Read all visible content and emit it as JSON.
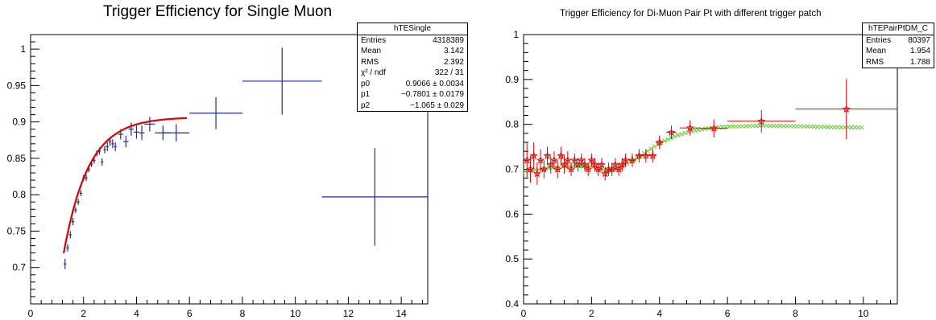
{
  "chart_data": [
    {
      "type": "scatter",
      "title": "Trigger Efficiency for Single Muon",
      "xlabel": "",
      "ylabel": "",
      "xlim": [
        0,
        15
      ],
      "ylim": [
        0.65,
        1.02
      ],
      "xticks": [
        0,
        2,
        4,
        6,
        8,
        10,
        12,
        14
      ],
      "xtick_labels": [
        "0",
        "2",
        "4",
        "6",
        "8",
        "10",
        "12",
        "14"
      ],
      "yticks": [
        0.7,
        0.75,
        0.8,
        0.85,
        0.9,
        0.95,
        1
      ],
      "ytick_labels": [
        "0.7",
        "0.75",
        "0.8",
        "0.85",
        "0.9",
        "0.95",
        "1"
      ],
      "grid": false,
      "marker_color": "#1f2f8f",
      "fit_color": "#e00000",
      "series": [
        {
          "points": [
            {
              "x": 1.3,
              "y": 0.705,
              "xerr": 0.05,
              "yerr": 0.007
            },
            {
              "x": 1.4,
              "y": 0.727,
              "xerr": 0.05,
              "yerr": 0.005
            },
            {
              "x": 1.5,
              "y": 0.745,
              "xerr": 0.05,
              "yerr": 0.005
            },
            {
              "x": 1.6,
              "y": 0.763,
              "xerr": 0.05,
              "yerr": 0.005
            },
            {
              "x": 1.7,
              "y": 0.779,
              "xerr": 0.05,
              "yerr": 0.004
            },
            {
              "x": 1.8,
              "y": 0.79,
              "xerr": 0.05,
              "yerr": 0.004
            },
            {
              "x": 1.9,
              "y": 0.802,
              "xerr": 0.05,
              "yerr": 0.004
            },
            {
              "x": 2.0,
              "y": 0.823,
              "xerr": 0.05,
              "yerr": 0.004
            },
            {
              "x": 2.1,
              "y": 0.823,
              "xerr": 0.05,
              "yerr": 0.004
            },
            {
              "x": 2.2,
              "y": 0.835,
              "xerr": 0.05,
              "yerr": 0.004
            },
            {
              "x": 2.3,
              "y": 0.842,
              "xerr": 0.05,
              "yerr": 0.004
            },
            {
              "x": 2.4,
              "y": 0.847,
              "xerr": 0.05,
              "yerr": 0.004
            },
            {
              "x": 2.5,
              "y": 0.857,
              "xerr": 0.05,
              "yerr": 0.004
            },
            {
              "x": 2.6,
              "y": 0.86,
              "xerr": 0.05,
              "yerr": 0.005
            },
            {
              "x": 2.7,
              "y": 0.845,
              "xerr": 0.05,
              "yerr": 0.005
            },
            {
              "x": 2.8,
              "y": 0.862,
              "xerr": 0.05,
              "yerr": 0.005
            },
            {
              "x": 2.9,
              "y": 0.866,
              "xerr": 0.05,
              "yerr": 0.006
            },
            {
              "x": 3.0,
              "y": 0.873,
              "xerr": 0.05,
              "yerr": 0.006
            },
            {
              "x": 3.1,
              "y": 0.87,
              "xerr": 0.05,
              "yerr": 0.006
            },
            {
              "x": 3.2,
              "y": 0.866,
              "xerr": 0.05,
              "yerr": 0.006
            },
            {
              "x": 3.4,
              "y": 0.883,
              "xerr": 0.1,
              "yerr": 0.007
            },
            {
              "x": 3.6,
              "y": 0.873,
              "xerr": 0.1,
              "yerr": 0.008
            },
            {
              "x": 3.8,
              "y": 0.89,
              "xerr": 0.1,
              "yerr": 0.009
            },
            {
              "x": 4.0,
              "y": 0.886,
              "xerr": 0.1,
              "yerr": 0.009
            },
            {
              "x": 4.2,
              "y": 0.885,
              "xerr": 0.1,
              "yerr": 0.01
            },
            {
              "x": 4.5,
              "y": 0.897,
              "xerr": 0.2,
              "yerr": 0.01
            },
            {
              "x": 5.0,
              "y": 0.885,
              "xerr": 0.3,
              "yerr": 0.01
            },
            {
              "x": 5.5,
              "y": 0.885,
              "xerr": 0.5,
              "yerr": 0.012
            },
            {
              "x": 7.0,
              "y": 0.912,
              "xerr": 1.0,
              "yerr": 0.022
            },
            {
              "x": 9.5,
              "y": 0.956,
              "xerr": 1.5,
              "yerr": 0.046
            },
            {
              "x": 13.0,
              "y": 0.797,
              "xerr": 2.0,
              "yerr": 0.067
            }
          ]
        }
      ],
      "fit": {
        "x_range": [
          1.25,
          5.9
        ],
        "p0": 0.9066,
        "p1": -0.7801,
        "p2": -1.065
      },
      "stats": {
        "title": "hTESingle",
        "rows": [
          {
            "label": "Entries",
            "value": "4318389"
          },
          {
            "label": "Mean",
            "value": "3.142"
          },
          {
            "label": "RMS",
            "value": "2.392"
          },
          {
            "label": "χ² / ndf",
            "value": "322 / 31"
          },
          {
            "label": "p0",
            "value": "0.9066 ± 0.0034"
          },
          {
            "label": "p1",
            "value": "−0.7801 ± 0.0179"
          },
          {
            "label": "p2",
            "value": "−1.065 ± 0.029"
          }
        ]
      }
    },
    {
      "type": "scatter",
      "title": "Trigger Efficiency for Di-Muon Pair Pt with different trigger patch",
      "xlabel": "",
      "ylabel": "",
      "xlim": [
        0,
        11
      ],
      "ylim": [
        0.4,
        1
      ],
      "xticks": [
        0,
        2,
        4,
        6,
        8,
        10
      ],
      "xtick_labels": [
        "0",
        "2",
        "4",
        "6",
        "8",
        "10"
      ],
      "yticks": [
        0.4,
        0.5,
        0.6,
        0.7,
        0.8,
        0.9,
        1
      ],
      "ytick_labels": [
        "0.4",
        "0.5",
        "0.6",
        "0.7",
        "0.8",
        "0.9",
        "1"
      ],
      "grid": false,
      "series": [
        {
          "color": "#e00000",
          "marker": "star",
          "points": [
            {
              "x": 0.1,
              "y": 0.72,
              "xerr": 0.05,
              "yerr": 0.04
            },
            {
              "x": 0.2,
              "y": 0.7,
              "xerr": 0.05,
              "yerr": 0.03
            },
            {
              "x": 0.3,
              "y": 0.73,
              "xerr": 0.05,
              "yerr": 0.03
            },
            {
              "x": 0.4,
              "y": 0.69,
              "xerr": 0.05,
              "yerr": 0.025
            },
            {
              "x": 0.5,
              "y": 0.72,
              "xerr": 0.05,
              "yerr": 0.025
            },
            {
              "x": 0.6,
              "y": 0.7,
              "xerr": 0.05,
              "yerr": 0.02
            },
            {
              "x": 0.7,
              "y": 0.73,
              "xerr": 0.05,
              "yerr": 0.02
            },
            {
              "x": 0.8,
              "y": 0.71,
              "xerr": 0.05,
              "yerr": 0.02
            },
            {
              "x": 0.9,
              "y": 0.72,
              "xerr": 0.05,
              "yerr": 0.02
            },
            {
              "x": 1.0,
              "y": 0.7,
              "xerr": 0.05,
              "yerr": 0.02
            },
            {
              "x": 1.1,
              "y": 0.73,
              "xerr": 0.05,
              "yerr": 0.02
            },
            {
              "x": 1.2,
              "y": 0.71,
              "xerr": 0.05,
              "yerr": 0.02
            },
            {
              "x": 1.3,
              "y": 0.72,
              "xerr": 0.05,
              "yerr": 0.02
            },
            {
              "x": 1.4,
              "y": 0.7,
              "xerr": 0.05,
              "yerr": 0.015
            },
            {
              "x": 1.5,
              "y": 0.72,
              "xerr": 0.05,
              "yerr": 0.015
            },
            {
              "x": 1.6,
              "y": 0.71,
              "xerr": 0.05,
              "yerr": 0.015
            },
            {
              "x": 1.7,
              "y": 0.72,
              "xerr": 0.05,
              "yerr": 0.015
            },
            {
              "x": 1.8,
              "y": 0.71,
              "xerr": 0.05,
              "yerr": 0.015
            },
            {
              "x": 1.9,
              "y": 0.7,
              "xerr": 0.05,
              "yerr": 0.015
            },
            {
              "x": 2.0,
              "y": 0.72,
              "xerr": 0.05,
              "yerr": 0.015
            },
            {
              "x": 2.1,
              "y": 0.71,
              "xerr": 0.05,
              "yerr": 0.015
            },
            {
              "x": 2.2,
              "y": 0.7,
              "xerr": 0.05,
              "yerr": 0.015
            },
            {
              "x": 2.3,
              "y": 0.71,
              "xerr": 0.05,
              "yerr": 0.015
            },
            {
              "x": 2.4,
              "y": 0.69,
              "xerr": 0.05,
              "yerr": 0.015
            },
            {
              "x": 2.5,
              "y": 0.7,
              "xerr": 0.05,
              "yerr": 0.015
            },
            {
              "x": 2.6,
              "y": 0.7,
              "xerr": 0.05,
              "yerr": 0.015
            },
            {
              "x": 2.7,
              "y": 0.71,
              "xerr": 0.05,
              "yerr": 0.015
            },
            {
              "x": 2.8,
              "y": 0.7,
              "xerr": 0.05,
              "yerr": 0.015
            },
            {
              "x": 2.9,
              "y": 0.71,
              "xerr": 0.05,
              "yerr": 0.015
            },
            {
              "x": 3.0,
              "y": 0.72,
              "xerr": 0.05,
              "yerr": 0.015
            },
            {
              "x": 3.2,
              "y": 0.72,
              "xerr": 0.1,
              "yerr": 0.015
            },
            {
              "x": 3.4,
              "y": 0.73,
              "xerr": 0.1,
              "yerr": 0.015
            },
            {
              "x": 3.6,
              "y": 0.73,
              "xerr": 0.1,
              "yerr": 0.015
            },
            {
              "x": 3.8,
              "y": 0.73,
              "xerr": 0.1,
              "yerr": 0.015
            },
            {
              "x": 4.0,
              "y": 0.76,
              "xerr": 0.1,
              "yerr": 0.015
            },
            {
              "x": 4.35,
              "y": 0.782,
              "xerr": 0.15,
              "yerr": 0.015
            },
            {
              "x": 4.9,
              "y": 0.792,
              "xerr": 0.3,
              "yerr": 0.017
            },
            {
              "x": 5.6,
              "y": 0.791,
              "xerr": 0.4,
              "yerr": 0.02
            },
            {
              "x": 7.0,
              "y": 0.807,
              "xerr": 1.0,
              "yerr": 0.025
            },
            {
              "x": 9.5,
              "y": 0.834,
              "xerr": 1.5,
              "yerr": 0.067
            }
          ]
        },
        {
          "color": "#66cc33",
          "marker": "x",
          "curve": [
            {
              "x": 0.0,
              "y": 0.695
            },
            {
              "x": 0.5,
              "y": 0.7
            },
            {
              "x": 1.0,
              "y": 0.705
            },
            {
              "x": 1.5,
              "y": 0.707
            },
            {
              "x": 2.0,
              "y": 0.706
            },
            {
              "x": 2.3,
              "y": 0.7
            },
            {
              "x": 2.5,
              "y": 0.695
            },
            {
              "x": 2.8,
              "y": 0.703
            },
            {
              "x": 3.0,
              "y": 0.712
            },
            {
              "x": 3.3,
              "y": 0.722
            },
            {
              "x": 3.6,
              "y": 0.738
            },
            {
              "x": 4.0,
              "y": 0.758
            },
            {
              "x": 4.5,
              "y": 0.775
            },
            {
              "x": 5.0,
              "y": 0.786
            },
            {
              "x": 5.5,
              "y": 0.792
            },
            {
              "x": 6.0,
              "y": 0.795
            },
            {
              "x": 7.0,
              "y": 0.797
            },
            {
              "x": 8.0,
              "y": 0.796
            },
            {
              "x": 9.0,
              "y": 0.794
            },
            {
              "x": 10.0,
              "y": 0.793
            }
          ]
        }
      ],
      "stats": {
        "title": "hTEPairPtDM_C",
        "rows": [
          {
            "label": "Entries",
            "value": "80397"
          },
          {
            "label": "Mean",
            "value": "1.954"
          },
          {
            "label": "RMS",
            "value": "1.788"
          }
        ]
      }
    }
  ]
}
